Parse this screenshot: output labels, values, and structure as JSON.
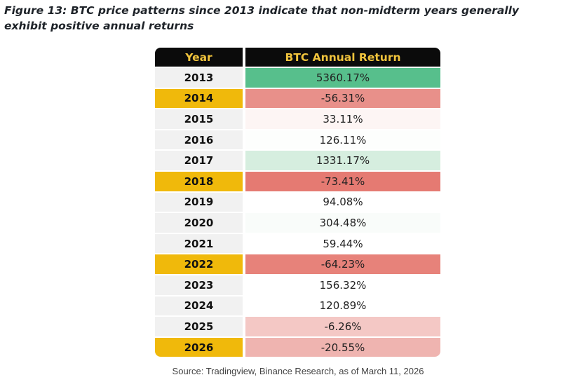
{
  "title": "Figure 13: BTC price patterns since 2013 indicate that non-midterm years generally exhibit positive annual returns",
  "table": {
    "headers": [
      "Year",
      "BTC Annual Return"
    ],
    "header_bg": "#0b0b0b",
    "header_text": "#f0c33c",
    "year_bg": "#f1f1f1",
    "midterm_bg": "#f0b90b",
    "rows": [
      {
        "year": "2013",
        "ret": "5360.17%",
        "midterm": false,
        "color": "#57bf8c"
      },
      {
        "year": "2014",
        "ret": "-56.31%",
        "midterm": true,
        "color": "#e8908a"
      },
      {
        "year": "2015",
        "ret": "33.11%",
        "midterm": false,
        "color": "#fdf5f4"
      },
      {
        "year": "2016",
        "ret": "126.11%",
        "midterm": false,
        "color": "#fdfefd"
      },
      {
        "year": "2017",
        "ret": "1331.17%",
        "midterm": false,
        "color": "#d6eedf"
      },
      {
        "year": "2018",
        "ret": "-73.41%",
        "midterm": true,
        "color": "#e57a72"
      },
      {
        "year": "2019",
        "ret": "94.08%",
        "midterm": false,
        "color": "#ffffff"
      },
      {
        "year": "2020",
        "ret": "304.48%",
        "midterm": false,
        "color": "#f9fcfa"
      },
      {
        "year": "2021",
        "ret": "59.44%",
        "midterm": false,
        "color": "#ffffff"
      },
      {
        "year": "2022",
        "ret": "-64.23%",
        "midterm": true,
        "color": "#e7827a"
      },
      {
        "year": "2023",
        "ret": "156.32%",
        "midterm": false,
        "color": "#ffffff"
      },
      {
        "year": "2024",
        "ret": "120.89%",
        "midterm": false,
        "color": "#ffffff"
      },
      {
        "year": "2025",
        "ret": "-6.26%",
        "midterm": false,
        "color": "#f4c8c5"
      },
      {
        "year": "2026",
        "ret": "-20.55%",
        "midterm": true,
        "color": "#efb4b0"
      }
    ]
  },
  "source": "Source: Tradingview, Binance Research, as of March 11, 2026"
}
